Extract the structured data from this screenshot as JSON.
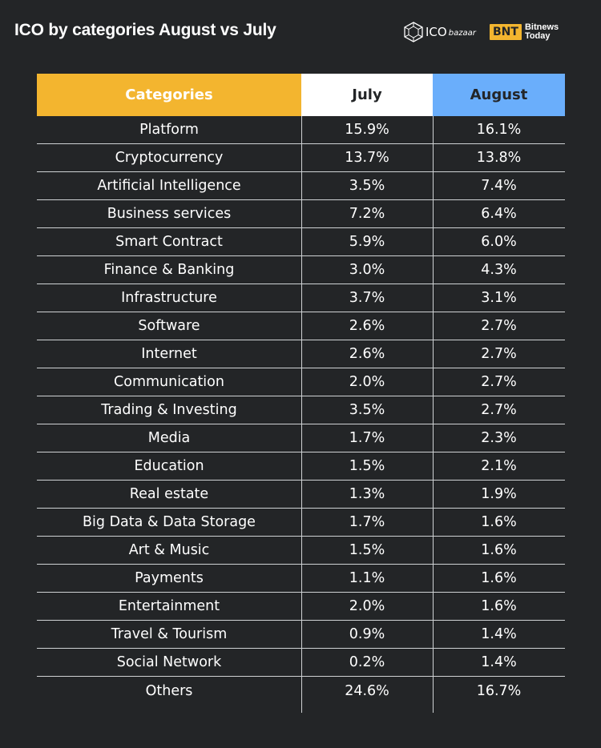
{
  "header": {
    "title": "ICO by categories August vs July",
    "brand1_main": "ICO",
    "brand1_sub": "bazaar",
    "brand2_box": "BNT",
    "brand2_line1": "Bitnews",
    "brand2_line2": "Today"
  },
  "colors": {
    "background": "#232527",
    "categories_header": "#f3b52f",
    "july_header": "#ffffff",
    "august_header": "#6aaefb"
  },
  "chart_data": {
    "type": "table",
    "title": "ICO by categories August vs July",
    "columns": [
      "Categories",
      "July",
      "August"
    ],
    "rows": [
      [
        "Platform",
        "15.9%",
        "16.1%"
      ],
      [
        "Cryptocurrency",
        "13.7%",
        "13.8%"
      ],
      [
        "Artificial Intelligence",
        "3.5%",
        "7.4%"
      ],
      [
        "Business services",
        "7.2%",
        "6.4%"
      ],
      [
        "Smart Contract",
        "5.9%",
        "6.0%"
      ],
      [
        "Finance & Banking",
        "3.0%",
        "4.3%"
      ],
      [
        "Infrastructure",
        "3.7%",
        "3.1%"
      ],
      [
        "Software",
        "2.6%",
        "2.7%"
      ],
      [
        "Internet",
        "2.6%",
        "2.7%"
      ],
      [
        "Communication",
        "2.0%",
        "2.7%"
      ],
      [
        "Trading & Investing",
        "3.5%",
        "2.7%"
      ],
      [
        "Media",
        "1.7%",
        "2.3%"
      ],
      [
        "Education",
        "1.5%",
        "2.1%"
      ],
      [
        "Real estate",
        "1.3%",
        "1.9%"
      ],
      [
        "Big Data & Data Storage",
        "1.7%",
        "1.6%"
      ],
      [
        "Art & Music",
        "1.5%",
        "1.6%"
      ],
      [
        "Payments",
        "1.1%",
        "1.6%"
      ],
      [
        "Entertainment",
        "2.0%",
        "1.6%"
      ],
      [
        "Travel & Tourism",
        "0.9%",
        "1.4%"
      ],
      [
        "Social Network",
        "0.2%",
        "1.4%"
      ],
      [
        "Others",
        "24.6%",
        "16.7%"
      ]
    ]
  }
}
